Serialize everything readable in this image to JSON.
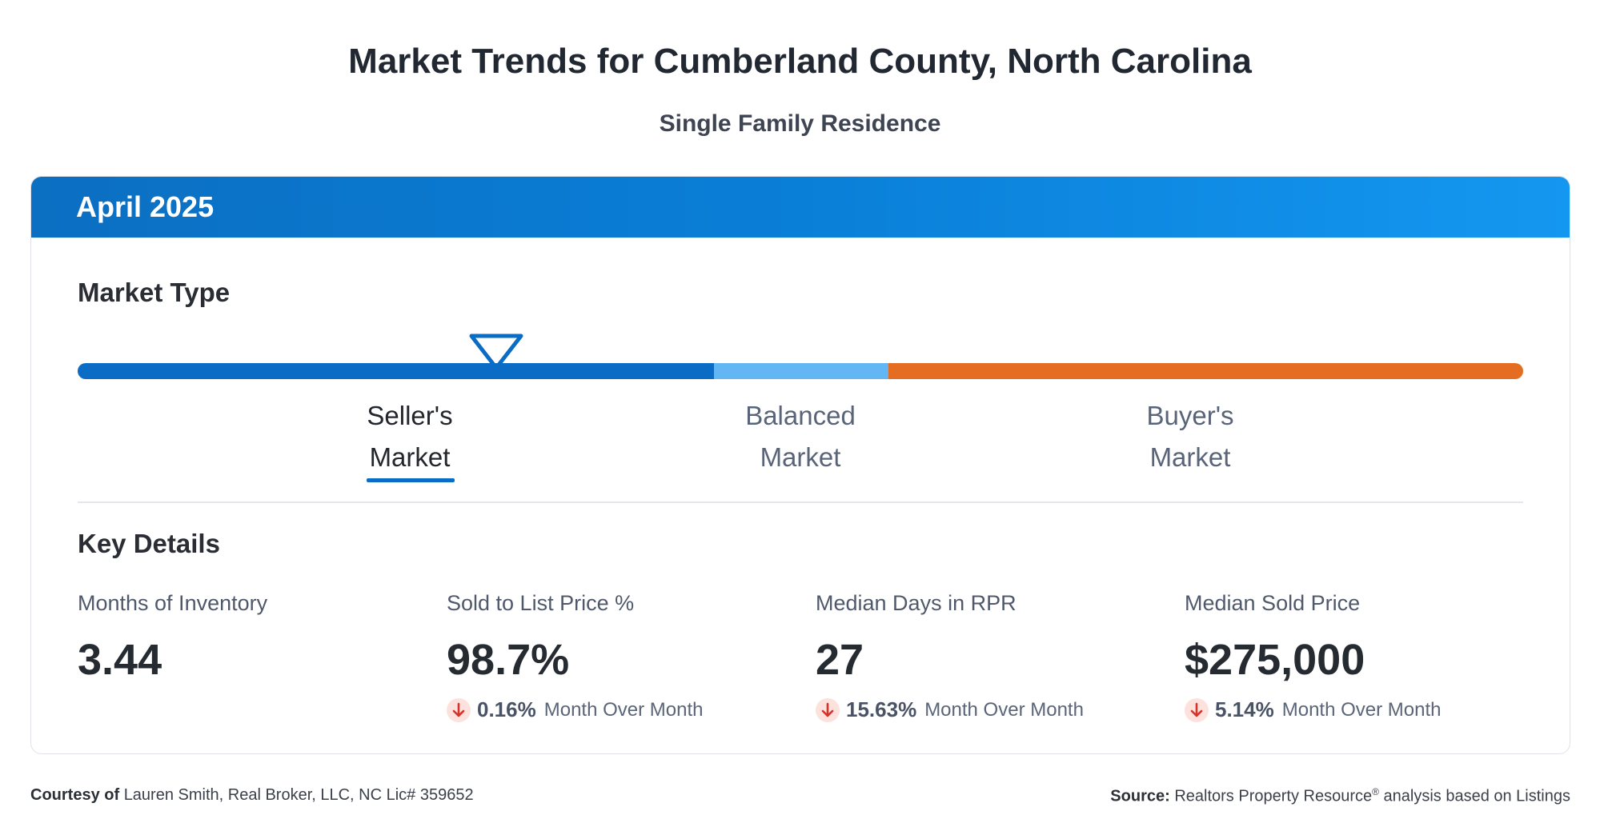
{
  "page": {
    "title": "Market Trends for Cumberland County, North Carolina",
    "subtitle": "Single Family Residence"
  },
  "card": {
    "period": "April 2025",
    "market_type": {
      "heading": "Market Type",
      "segments": [
        {
          "name": "seller",
          "color": "#0a6cc4"
        },
        {
          "name": "balanced",
          "color": "#62b6f4"
        },
        {
          "name": "buyer",
          "color": "#e56d21"
        }
      ],
      "selected": "seller",
      "labels": {
        "seller_line1": "Seller's",
        "seller_line2": "Market",
        "balanced_line1": "Balanced",
        "balanced_line2": "Market",
        "buyer_line1": "Buyer's",
        "buyer_line2": "Market"
      }
    },
    "key_details": {
      "heading": "Key Details",
      "stats": [
        {
          "label": "Months of Inventory",
          "value": "3.44"
        },
        {
          "label": "Sold to List Price %",
          "value": "98.7%",
          "change": "0.16%",
          "change_label": "Month Over Month",
          "direction": "down"
        },
        {
          "label": "Median Days in RPR",
          "value": "27",
          "change": "15.63%",
          "change_label": "Month Over Month",
          "direction": "down"
        },
        {
          "label": "Median Sold Price",
          "value": "$275,000",
          "change": "5.14%",
          "change_label": "Month Over Month",
          "direction": "down"
        }
      ]
    }
  },
  "footer": {
    "courtesy_label": "Courtesy of",
    "courtesy_text": "Lauren Smith, Real Broker, LLC, NC Lic# 359652",
    "source_label": "Source:",
    "source_text_before": "Realtors Property Resource",
    "source_sup": "®",
    "source_text_after": " analysis based on Listings"
  },
  "colors": {
    "accent_blue": "#0a6cc4",
    "down_arrow": "#d6332a",
    "down_bg": "#fde1dc"
  },
  "icons": {
    "marker": "triangle-down-marker-icon",
    "change": "arrow-down-icon"
  }
}
